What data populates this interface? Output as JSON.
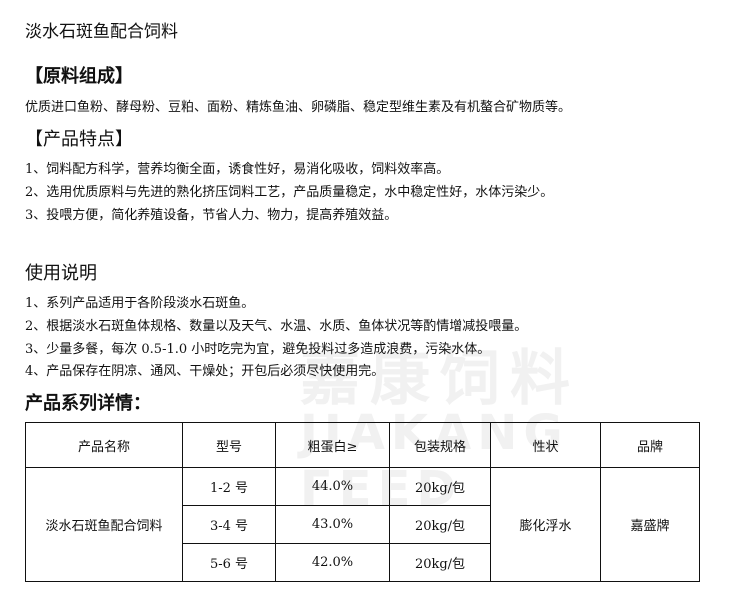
{
  "title": "淡水石斑鱼配合饲料",
  "ingredients": {
    "heading": "【原料组成】",
    "text": "优质进口鱼粉、酵母粉、豆粕、面粉、精炼鱼油、卵磷脂、稳定型维生素及有机螯合矿物质等。"
  },
  "features": {
    "heading": "【产品特点】",
    "items": [
      "1、饲料配方科学，营养均衡全面，诱食性好，易消化吸收，饲料效率高。",
      "2、选用优质原料与先进的熟化挤压饲料工艺，产品质量稳定，水中稳定性好，水体污染少。",
      "3、投喂方便，简化养殖设备，节省人力、物力，提高养殖效益。"
    ]
  },
  "usage": {
    "heading": "使用说明",
    "items": [
      "1、系列产品适用于各阶段淡水石斑鱼。",
      "2、根据淡水石斑鱼体规格、数量以及天气、水温、水质、鱼体状况等酌情增减投喂量。",
      "3、少量多餐，每次 0.5-1.0 小时吃完为宜，避免投料过多造成浪费，污染水体。",
      "4、产品保存在阴凉、通风、干燥处；开包后必须尽快使用完。"
    ]
  },
  "series": {
    "heading": "产品系列详情：",
    "headers": [
      "产品名称",
      "型号",
      "粗蛋白≥",
      "包装规格",
      "性状",
      "品牌"
    ],
    "name": "淡水石斑鱼配合饲料",
    "form": "膨化浮水",
    "brand": "嘉盛牌",
    "rows": [
      {
        "model": "1-2 号",
        "protein": "44.0%",
        "pack": "20kg/包"
      },
      {
        "model": "3-4 号",
        "protein": "43.0%",
        "pack": "20kg/包"
      },
      {
        "model": "5-6 号",
        "protein": "42.0%",
        "pack": "20kg/包"
      }
    ]
  },
  "watermark": {
    "cn": "嘉康饲料",
    "en": "JIAKANG FEED"
  }
}
